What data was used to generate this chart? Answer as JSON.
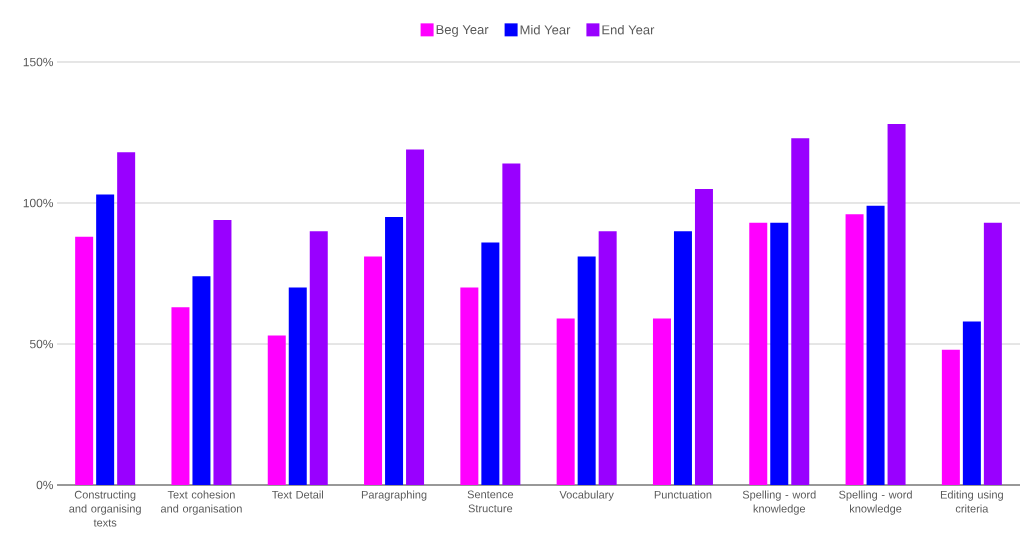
{
  "chart_data": {
    "type": "bar",
    "categories": [
      "Constructing and organising texts",
      "Text cohesion and organisation",
      "Text Detail",
      "Paragraphing",
      "Sentence Structure",
      "Vocabulary",
      "Punctuation",
      "Spelling - word knowledge",
      "Spelling - word knowledge",
      "Editing using criteria"
    ],
    "series": [
      {
        "name": "Beg Year",
        "color": "#ff00ff",
        "values": [
          88,
          63,
          53,
          81,
          70,
          59,
          59,
          93,
          96,
          48
        ]
      },
      {
        "name": "Mid Year",
        "color": "#0000ff",
        "values": [
          103,
          74,
          70,
          95,
          86,
          81,
          90,
          93,
          99,
          58
        ]
      },
      {
        "name": "End Year",
        "color": "#9900ff",
        "values": [
          118,
          94,
          90,
          119,
          114,
          90,
          105,
          123,
          128,
          93
        ]
      }
    ],
    "ylim": [
      0,
      150
    ],
    "yticks": [
      {
        "value": 0,
        "label": "0%"
      },
      {
        "value": 50,
        "label": "50%"
      },
      {
        "value": 100,
        "label": "100%"
      },
      {
        "value": 150,
        "label": "150%"
      }
    ],
    "grid": "y",
    "legend": "top"
  }
}
